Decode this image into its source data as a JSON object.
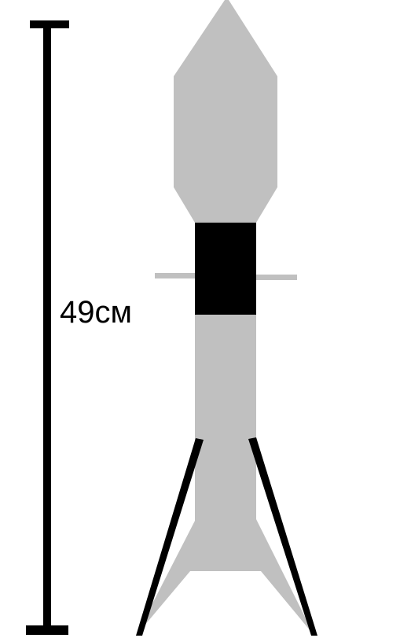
{
  "dimension": {
    "label": "49см"
  },
  "colors": {
    "body": "#c0c0c0",
    "band": "#000000",
    "legs": "#000000",
    "scale_bar": "#000000",
    "background": "#ffffff"
  }
}
